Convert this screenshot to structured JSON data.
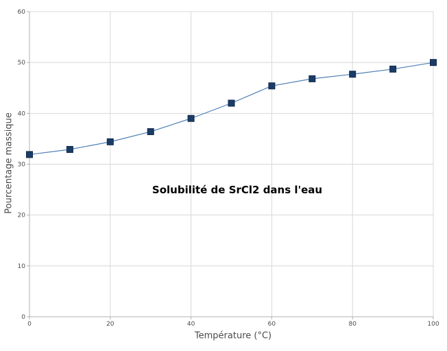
{
  "chart_data": {
    "type": "line",
    "title": "Solubilité de SrCl2 dans l'eau",
    "xlabel": "Température (°C)",
    "ylabel": "Pourcentage massique",
    "x": [
      0,
      10,
      20,
      30,
      40,
      50,
      60,
      70,
      80,
      90,
      100
    ],
    "y": [
      31.9,
      32.9,
      34.4,
      36.4,
      39.0,
      42.0,
      45.4,
      46.8,
      47.7,
      48.7,
      50.0
    ],
    "xlim": [
      0,
      100
    ],
    "ylim": [
      0,
      60
    ],
    "xticks": [
      0,
      20,
      40,
      60,
      80,
      100
    ],
    "yticks": [
      0,
      10,
      20,
      30,
      40,
      50,
      60
    ],
    "grid": true,
    "legend": "none",
    "marker": "square",
    "marker_size": 9,
    "colors": {
      "line": "#4e7fb5",
      "marker_fill": "#1a3c66",
      "marker_stroke": "#102a4c",
      "grid": "#d8d8d8",
      "axis": "#b0b0b0",
      "tick_label": "#4a4a4a",
      "title": "#000000",
      "background": "#ffffff"
    }
  }
}
